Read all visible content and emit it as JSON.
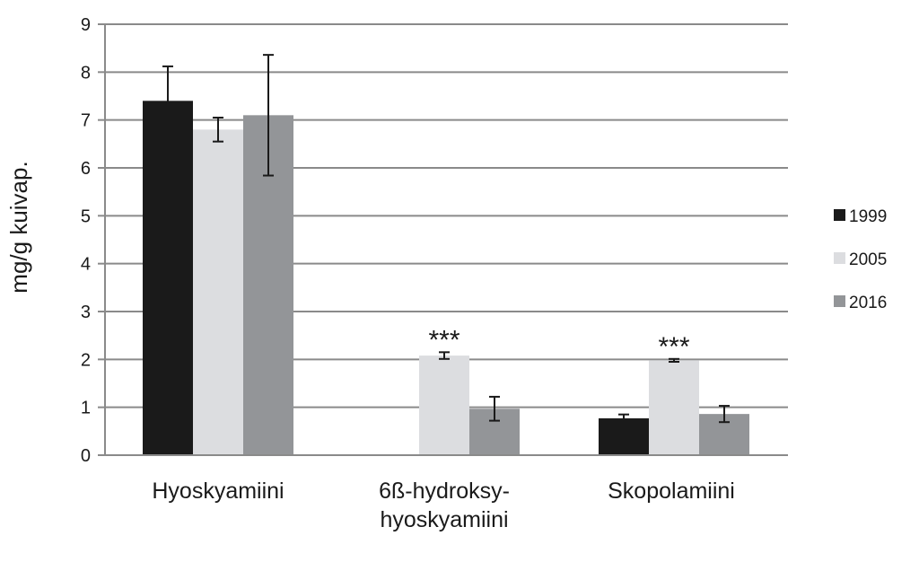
{
  "chart_data": {
    "type": "bar",
    "ylabel": "mg/g kuivap.",
    "ylim": [
      0,
      9
    ],
    "yticks": [
      0,
      1,
      2,
      3,
      4,
      5,
      6,
      7,
      8,
      9
    ],
    "grid": true,
    "legend_position": "right",
    "categories": [
      [
        "Hyoskyamiini"
      ],
      [
        "6ß-hydroksy-",
        "hyoskyamiini"
      ],
      [
        "Skopolamiini"
      ]
    ],
    "series": [
      {
        "name": "1999",
        "color": "#1a1a1a",
        "values": [
          7.4,
          null,
          0.77
        ],
        "errors": [
          0.72,
          null,
          0.08
        ]
      },
      {
        "name": "2005",
        "color": "#dcdde0",
        "values": [
          6.8,
          2.08,
          1.98
        ],
        "errors": [
          0.25,
          0.07,
          0.03
        ]
      },
      {
        "name": "2016",
        "color": "#939598",
        "values": [
          7.1,
          0.97,
          0.86
        ],
        "errors": [
          1.26,
          0.25,
          0.17
        ]
      }
    ],
    "annotations": [
      {
        "category_index": 1,
        "text": "***"
      },
      {
        "category_index": 2,
        "text": "***"
      }
    ]
  }
}
